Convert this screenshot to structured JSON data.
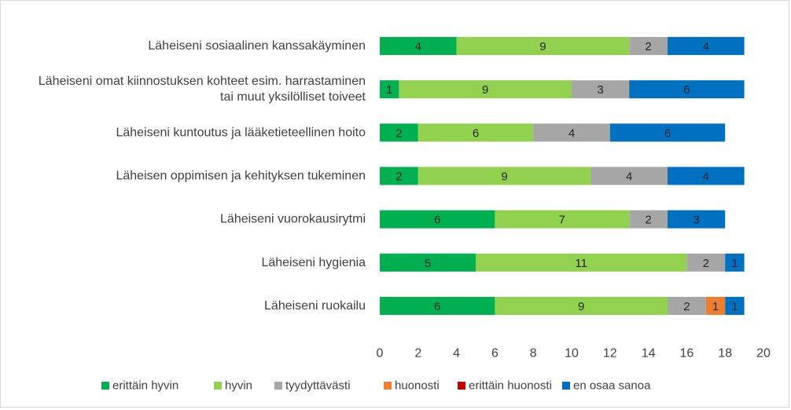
{
  "chart_data": {
    "type": "bar",
    "orientation": "horizontal",
    "stacked": true,
    "categories": [
      "Läheiseni sosiaalinen kanssakäyminen",
      "Läheiseni omat kiinnostuksen kohteet esim. harrastaminen tai muut yksilölliset toiveet",
      "Läheiseni kuntoutus ja lääketieteellinen hoito",
      "Läheisen oppimisen ja kehityksen tukeminen",
      "Läheiseni vuorokausirytmi",
      "Läheiseni hygienia",
      "Läheiseni ruokailu"
    ],
    "category_lines": [
      [
        "Läheiseni sosiaalinen kanssakäyminen"
      ],
      [
        "Läheiseni omat kiinnostuksen kohteet esim. harrastaminen",
        "tai muut yksilölliset toiveet"
      ],
      [
        "Läheiseni kuntoutus ja lääketieteellinen hoito"
      ],
      [
        "Läheisen oppimisen ja kehityksen tukeminen"
      ],
      [
        "Läheiseni vuorokausirytmi"
      ],
      [
        "Läheiseni hygienia"
      ],
      [
        "Läheiseni ruokailu"
      ]
    ],
    "series": [
      {
        "name": "erittäin hyvin",
        "color": "#00b050",
        "values": [
          4,
          1,
          2,
          2,
          6,
          5,
          6
        ]
      },
      {
        "name": "hyvin",
        "color": "#92d050",
        "values": [
          9,
          9,
          6,
          9,
          7,
          11,
          9
        ]
      },
      {
        "name": "tyydyttävästi",
        "color": "#a6a6a6",
        "values": [
          2,
          3,
          4,
          4,
          2,
          2,
          2
        ]
      },
      {
        "name": "huonosti",
        "color": "#ed7d31",
        "values": [
          0,
          0,
          0,
          0,
          0,
          0,
          1
        ]
      },
      {
        "name": "erittäin huonosti",
        "color": "#c00000",
        "values": [
          0,
          0,
          0,
          0,
          0,
          0,
          0
        ]
      },
      {
        "name": "en osaa sanoa",
        "color": "#0070c0",
        "values": [
          4,
          6,
          6,
          4,
          3,
          1,
          1
        ]
      }
    ],
    "xlim": [
      0,
      20
    ],
    "xticks": [
      0,
      2,
      4,
      6,
      8,
      10,
      12,
      14,
      16,
      18,
      20
    ],
    "title": "",
    "xlabel": "",
    "ylabel": "",
    "grid": false,
    "legend_position": "bottom"
  }
}
